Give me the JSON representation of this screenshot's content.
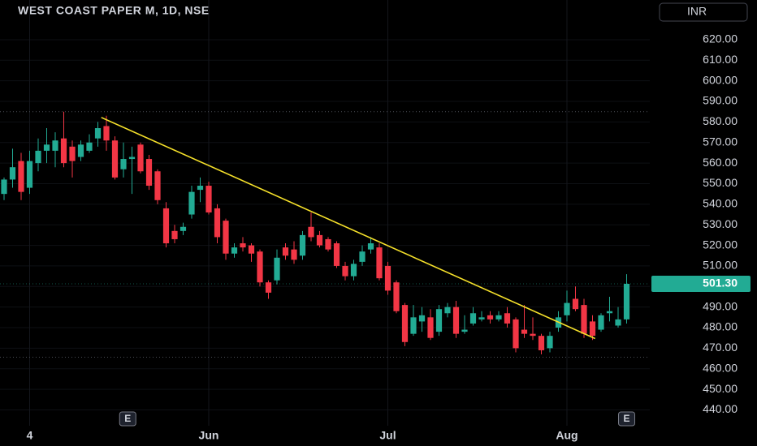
{
  "chart_data": {
    "type": "candlestick",
    "title": "WEST COAST PAPER M, 1D, NSE",
    "currency": "INR",
    "categories": [
      null,
      null,
      null,
      "4",
      null,
      null,
      null,
      null,
      null,
      null,
      null,
      null,
      null,
      null,
      null,
      null,
      null,
      null,
      null,
      null,
      null,
      null,
      null,
      null,
      "Jun",
      null,
      null,
      null,
      null,
      null,
      null,
      null,
      null,
      null,
      null,
      null,
      null,
      null,
      null,
      null,
      null,
      null,
      null,
      null,
      null,
      "Jul",
      null,
      null,
      null,
      null,
      null,
      null,
      null,
      null,
      null,
      null,
      null,
      null,
      null,
      null,
      null,
      null,
      null,
      null,
      null,
      null,
      "Aug",
      null,
      null,
      null,
      null,
      null,
      null,
      null
    ],
    "open": [
      545,
      552,
      561,
      548,
      560,
      566,
      566,
      572,
      568,
      563,
      566,
      572,
      578,
      571,
      557,
      562,
      569,
      562,
      556,
      538,
      527,
      527,
      535,
      547,
      549,
      538,
      532,
      516,
      521,
      520,
      517,
      502,
      503,
      519,
      518,
      515,
      529,
      525,
      523,
      521,
      510,
      505,
      512,
      518,
      519,
      510,
      502,
      491,
      477,
      483,
      485,
      478,
      487,
      490,
      478,
      482,
      484,
      486,
      484,
      487,
      484,
      479,
      477,
      476,
      470,
      480,
      486,
      494,
      491,
      483,
      479,
      487,
      481,
      484
    ],
    "high": [
      553,
      567,
      565,
      566,
      572,
      577,
      575,
      585,
      571,
      571,
      574,
      580,
      583,
      573,
      570,
      568,
      570,
      564,
      557,
      541,
      530,
      531,
      549,
      553,
      551,
      540,
      533,
      521,
      524,
      521,
      518,
      503,
      518,
      521,
      522,
      527,
      536,
      527,
      524,
      522,
      512,
      513,
      520,
      524,
      521,
      512,
      503,
      492,
      491,
      490,
      489,
      491,
      492,
      493,
      486,
      490,
      488,
      488,
      488,
      490,
      485,
      491,
      485,
      477,
      478,
      488,
      498,
      500,
      494,
      486,
      487,
      495,
      490,
      506
    ],
    "low": [
      542,
      548,
      542,
      545,
      556,
      560,
      558,
      558,
      553,
      561,
      565,
      568,
      566,
      552,
      553,
      545,
      555,
      547,
      540,
      519,
      521,
      525,
      533,
      541,
      535,
      521,
      513,
      514,
      517,
      512,
      500,
      494,
      501,
      513,
      511,
      513,
      522,
      519,
      517,
      509,
      503,
      503,
      510,
      516,
      503,
      496,
      487,
      471,
      476,
      478,
      474,
      476,
      485,
      475,
      477,
      481,
      483,
      482,
      483,
      480,
      468,
      475,
      474,
      467,
      468,
      478,
      483,
      488,
      475,
      474,
      478,
      483,
      480,
      482
    ],
    "close": [
      552,
      558,
      546,
      561,
      566,
      569,
      571,
      560,
      561,
      569,
      570,
      577,
      571,
      553,
      562,
      563,
      556,
      549,
      542,
      521,
      523,
      529,
      546,
      549,
      536,
      524,
      516,
      519,
      519,
      516,
      502,
      497,
      514,
      515,
      513,
      525,
      524,
      520,
      518,
      510,
      505,
      511,
      517,
      521,
      504,
      498,
      488,
      473,
      485,
      486,
      475,
      489,
      490,
      477,
      479,
      487,
      485,
      484,
      486,
      482,
      470,
      477,
      476,
      469,
      476,
      485,
      492,
      489,
      477,
      476,
      486,
      488,
      484,
      501.3
    ],
    "up_color": "#22ab94",
    "down_color": "#f23645",
    "ylim": [
      432.3,
      639.3
    ],
    "yticks": [
      {
        "value": 620,
        "label": "620.00"
      },
      {
        "value": 610,
        "label": "610.00"
      },
      {
        "value": 600,
        "label": "600.00"
      },
      {
        "value": 590,
        "label": "590.00"
      },
      {
        "value": 580,
        "label": "580.00"
      },
      {
        "value": 570,
        "label": "570.00"
      },
      {
        "value": 560,
        "label": "560.00"
      },
      {
        "value": 550,
        "label": "550.00"
      },
      {
        "value": 540,
        "label": "540.00"
      },
      {
        "value": 530,
        "label": "530.00"
      },
      {
        "value": 520,
        "label": "520.00"
      },
      {
        "value": 510,
        "label": "510.00"
      },
      {
        "value": 500,
        "label": "500.00"
      },
      {
        "value": 490,
        "label": "490.00"
      },
      {
        "value": 480,
        "label": "480.00"
      },
      {
        "value": 470,
        "label": "470.00"
      },
      {
        "value": 460,
        "label": "460.00"
      },
      {
        "value": 450,
        "label": "450.00"
      },
      {
        "value": 440,
        "label": "440.00"
      }
    ],
    "grid": true,
    "levels": [
      585,
      465.6
    ],
    "last_price": {
      "value": 501.3,
      "label": "501.30"
    },
    "trendline": {
      "x": [
        11.4,
        69.3
      ],
      "y": [
        582.2,
        474.7
      ],
      "color": "#f5e02a"
    },
    "events": [
      {
        "x": 14.5,
        "label": "E"
      },
      {
        "x": 73,
        "label": "E"
      }
    ]
  }
}
